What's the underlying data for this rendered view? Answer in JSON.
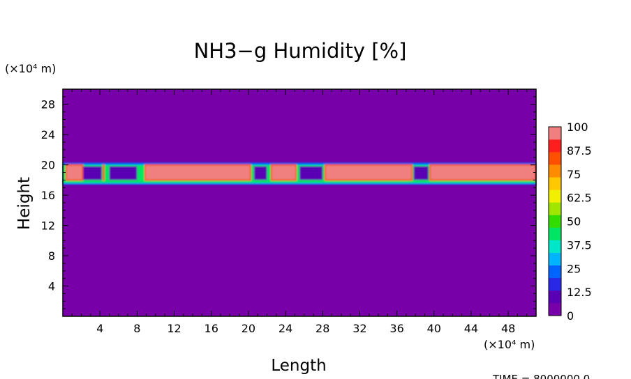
{
  "chart_data": {
    "type": "heatmap",
    "title": "NH3−g Humidity [%]",
    "xlabel": "Length",
    "ylabel": "Height",
    "x_unit": "(×10⁴ m)",
    "y_unit": "(×10⁴ m)",
    "time_label": "TIME = 8000000.0",
    "xlim": [
      0,
      51
    ],
    "ylim": [
      0,
      30
    ],
    "x_ticks": [
      4,
      8,
      12,
      16,
      20,
      24,
      28,
      32,
      36,
      40,
      44,
      48
    ],
    "x_tick_labels": [
      "4",
      "8",
      "12",
      "16",
      "20",
      "24",
      "28",
      "32",
      "36",
      "40",
      "44",
      "48"
    ],
    "y_ticks": [
      4,
      8,
      12,
      16,
      20,
      24,
      28
    ],
    "y_tick_labels": [
      "4",
      "8",
      "12",
      "16",
      "20",
      "24",
      "28"
    ],
    "background_value": 0,
    "layer": {
      "y_range": [
        17.3,
        20.3
      ],
      "saturated_core_y_range": [
        18.0,
        20.0
      ],
      "saturated_segments": [
        [
          0.3,
          2.2
        ],
        [
          4.3,
          4.5
        ],
        [
          8.8,
          20.3
        ],
        [
          22.4,
          25.2
        ],
        [
          28.2,
          37.7
        ],
        [
          39.5,
          51.0
        ]
      ],
      "value": 100
    },
    "colorbar": {
      "levels": [
        0,
        12.5,
        25,
        37.5,
        50,
        62.5,
        75,
        87.5,
        100
      ],
      "tick_labels": [
        "0",
        "12.5",
        "25",
        "37.5",
        "50",
        "62.5",
        "75",
        "87.5",
        "100"
      ],
      "colors": [
        "#7800a8",
        "#5a00b4",
        "#2828e6",
        "#0064ff",
        "#00b4ff",
        "#00e6c8",
        "#00e664",
        "#32dc00",
        "#a0e600",
        "#f0f000",
        "#ffc800",
        "#ff8c00",
        "#ff5000",
        "#ff1e1e",
        "#f08080"
      ]
    }
  }
}
